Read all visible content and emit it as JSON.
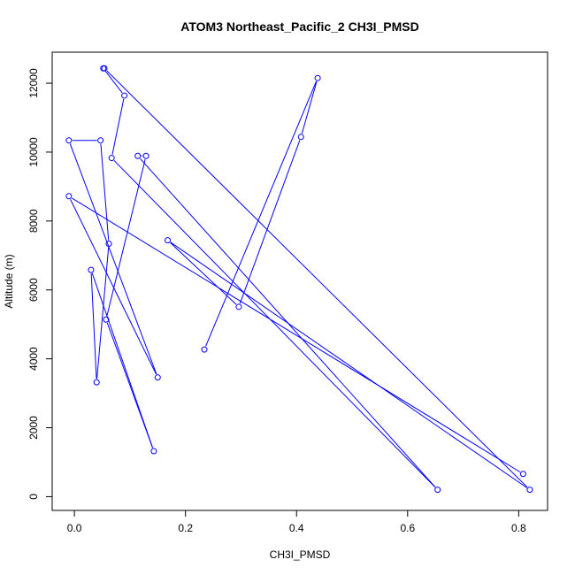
{
  "chart_data": {
    "type": "line",
    "title": "ATOM3 Northeast_Pacific_2 CH3I_PMSD",
    "xlabel": "CH3I_PMSD",
    "ylabel": "Altitude (m)",
    "xlim": [
      -0.04,
      0.852
    ],
    "ylim": [
      -400,
      12900
    ],
    "xticks": [
      0.0,
      0.2,
      0.4,
      0.6,
      0.8
    ],
    "xtick_labels": [
      "0.0",
      "0.2",
      "0.4",
      "0.6",
      "0.8"
    ],
    "yticks": [
      0,
      2000,
      4000,
      6000,
      8000,
      10000,
      12000
    ],
    "ytick_labels": [
      "0",
      "2000",
      "4000",
      "6000",
      "8000",
      "10000",
      "12000"
    ],
    "grid": false,
    "legend": "none",
    "color": "#0000ff",
    "markers": "open-circle",
    "series": [
      {
        "x": [
          0.234,
          0.438,
          0.408,
          0.296,
          0.168,
          0.82,
          0.054,
          0.052,
          0.09,
          0.067,
          0.654,
          0.114,
          0.129,
          0.057,
          0.143,
          0.03,
          0.04,
          0.062,
          0.047,
          -0.01,
          0.15,
          -0.01,
          0.808
        ],
        "y": [
          4270,
          12150,
          10440,
          5510,
          7440,
          200,
          12430,
          12430,
          11640,
          9830,
          200,
          9890,
          9890,
          5140,
          1320,
          6580,
          3320,
          7340,
          10340,
          10340,
          3460,
          8720,
          660
        ]
      }
    ]
  }
}
